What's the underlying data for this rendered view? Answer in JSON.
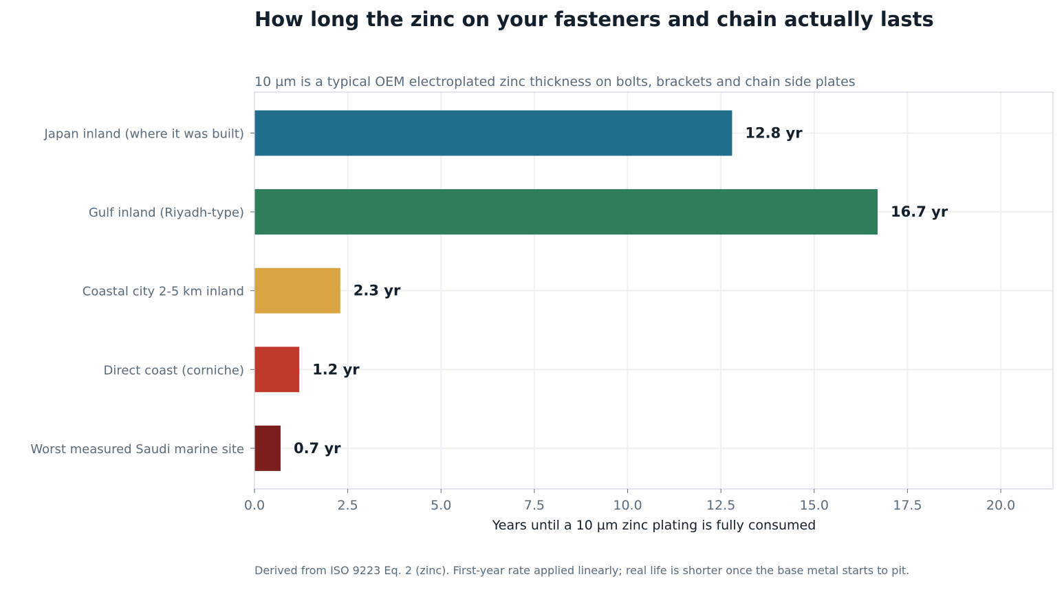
{
  "chart_data": {
    "type": "bar",
    "orientation": "horizontal",
    "title": "How long the zinc on your fasteners and chain actually lasts",
    "subtitle": "10 µm is a typical OEM electroplated zinc thickness on bolts, brackets and chain side plates",
    "xlabel": "Years until a 10 µm zinc plating is fully consumed",
    "ylabel": "",
    "footnote": "Derived from ISO 9223 Eq. 2 (zinc). First-year rate applied linearly; real life is shorter once the base metal starts to pit.",
    "xlim": [
      0,
      21.4
    ],
    "xticks": [
      "0.0",
      "2.5",
      "5.0",
      "7.5",
      "10.0",
      "12.5",
      "15.0",
      "17.5",
      "20.0"
    ],
    "grid": true,
    "categories": [
      "Japan inland (where it was built)",
      "Gulf inland (Riyadh-type)",
      "Coastal city 2-5 km inland",
      "Direct coast (corniche)",
      "Worst measured Saudi marine site"
    ],
    "values": [
      12.8,
      16.7,
      2.3,
      1.2,
      0.7
    ],
    "value_labels": [
      "12.8 yr",
      "16.7 yr",
      "2.3 yr",
      "1.2 yr",
      "0.7 yr"
    ],
    "colors": [
      "#1f6f8b",
      "#2e7d5b",
      "#d9a441",
      "#c0392b",
      "#7b1e1e"
    ]
  }
}
